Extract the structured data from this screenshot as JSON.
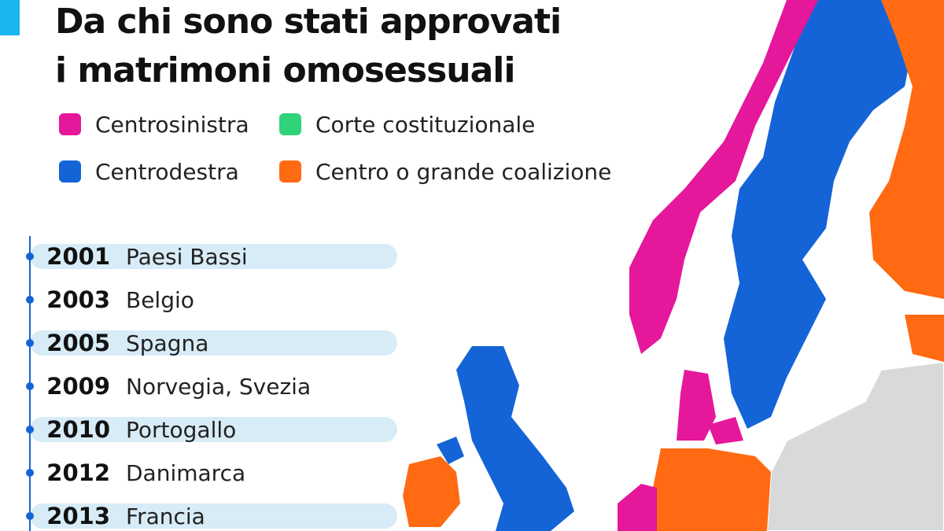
{
  "header": {
    "title_lines": [
      "Da chi sono stati approvati",
      "i matrimoni omosessuali"
    ]
  },
  "legend": [
    {
      "label": "Centrosinistra",
      "color": "#e5179b"
    },
    {
      "label": "Corte costituzionale",
      "color": "#2fd37a"
    },
    {
      "label": "Centrodestra",
      "color": "#1464d8"
    },
    {
      "label": "Centro o grande coalizione",
      "color": "#ff6a13"
    }
  ],
  "timeline": [
    {
      "year": "2001",
      "countries": "Paesi Bassi"
    },
    {
      "year": "2003",
      "countries": "Belgio"
    },
    {
      "year": "2005",
      "countries": "Spagna"
    },
    {
      "year": "2009",
      "countries": "Norvegia, Svezia"
    },
    {
      "year": "2010",
      "countries": "Portogallo"
    },
    {
      "year": "2012",
      "countries": "Danimarca"
    },
    {
      "year": "2013",
      "countries": "Francia"
    }
  ]
}
